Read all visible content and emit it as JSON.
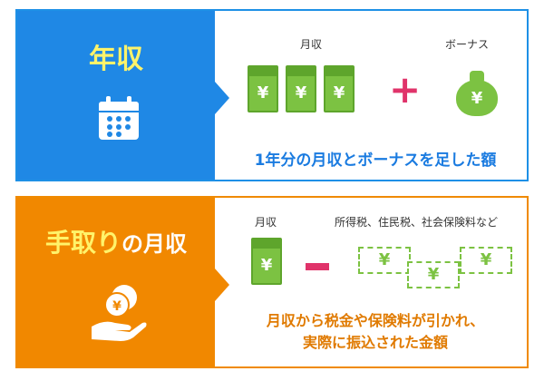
{
  "annual": {
    "title": "年収",
    "monthly_label": "月収",
    "bonus_label": "ボーナス",
    "caption": "1年分の月収とボーナスを足した額",
    "yen": "¥",
    "plus": "+"
  },
  "takehome": {
    "title_big": "手取り",
    "title_small": "の月収",
    "monthly_label": "月収",
    "tax_label": "所得税、住民税、社会保険料など",
    "caption_line1": "月収から税金や保険料が引かれ、",
    "caption_line2": "実際に振込された金額",
    "yen": "¥"
  }
}
